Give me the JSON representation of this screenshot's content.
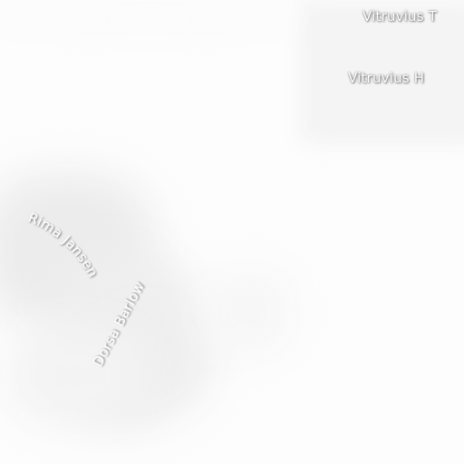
{
  "map": {
    "features": [
      {
        "name": "Vitruvius T"
      },
      {
        "name": "Vitruvius H"
      },
      {
        "name": "Rima Jansen"
      },
      {
        "name": "Dorsa Barlow"
      }
    ]
  }
}
